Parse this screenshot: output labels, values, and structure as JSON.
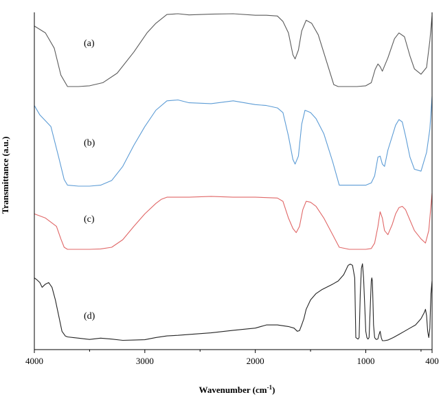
{
  "chart_data": {
    "type": "line",
    "title": "",
    "xlabel": "Wavenumber (cm",
    "xlabel_sup": "-1",
    "xlabel_tail": ")",
    "ylabel": "Transmittance (a.u.)",
    "x_reversed": true,
    "xlim": [
      4000,
      400
    ],
    "ylim": [
      0,
      1
    ],
    "y_ticks": false,
    "grid": false,
    "x_ticks": [
      4000,
      3000,
      2000,
      1000,
      400
    ],
    "x_tick_labels": [
      "4000",
      "3000",
      "2000",
      "1000",
      "400"
    ],
    "x_minor_ticks": [
      3500,
      2500,
      1500,
      500
    ],
    "series": [
      {
        "name": "(a)",
        "color": "#5a5a5a",
        "x": [
          4000,
          3900,
          3820,
          3760,
          3700,
          3600,
          3500,
          3380,
          3250,
          3100,
          2980,
          2900,
          2800,
          2700,
          2600,
          2400,
          2200,
          2000,
          1900,
          1800,
          1750,
          1700,
          1660,
          1640,
          1610,
          1580,
          1540,
          1490,
          1430,
          1360,
          1290,
          1250,
          1200,
          1150,
          1080,
          1000,
          950,
          915,
          890,
          870,
          850,
          800,
          740,
          700,
          650,
          600,
          560,
          500,
          450,
          420,
          400
        ],
        "y": [
          0.968,
          0.95,
          0.91,
          0.84,
          0.81,
          0.81,
          0.812,
          0.82,
          0.845,
          0.9,
          0.95,
          0.975,
          0.998,
          1.0,
          0.997,
          0.999,
          1.0,
          0.996,
          0.996,
          0.994,
          0.98,
          0.95,
          0.893,
          0.882,
          0.905,
          0.955,
          0.983,
          0.975,
          0.945,
          0.88,
          0.815,
          0.81,
          0.81,
          0.81,
          0.81,
          0.812,
          0.82,
          0.855,
          0.869,
          0.862,
          0.85,
          0.885,
          0.935,
          0.95,
          0.94,
          0.89,
          0.856,
          0.842,
          0.86,
          0.93,
          0.995
        ]
      },
      {
        "name": "(b)",
        "color": "#5b9bd5",
        "x": [
          4000,
          3950,
          3850,
          3780,
          3730,
          3700,
          3600,
          3500,
          3400,
          3300,
          3200,
          3100,
          3000,
          2900,
          2800,
          2700,
          2600,
          2400,
          2200,
          2000,
          1900,
          1800,
          1750,
          1700,
          1660,
          1640,
          1610,
          1580,
          1550,
          1500,
          1450,
          1380,
          1300,
          1240,
          1150,
          1080,
          1000,
          950,
          920,
          890,
          870,
          850,
          830,
          800,
          760,
          730,
          700,
          670,
          640,
          600,
          560,
          500,
          450,
          420,
          400
        ],
        "y": [
          0.75,
          0.73,
          0.705,
          0.64,
          0.592,
          0.58,
          0.578,
          0.578,
          0.58,
          0.59,
          0.62,
          0.665,
          0.705,
          0.74,
          0.76,
          0.762,
          0.756,
          0.754,
          0.76,
          0.752,
          0.75,
          0.745,
          0.735,
          0.685,
          0.635,
          0.625,
          0.642,
          0.71,
          0.74,
          0.735,
          0.722,
          0.69,
          0.63,
          0.58,
          0.58,
          0.58,
          0.58,
          0.585,
          0.6,
          0.64,
          0.642,
          0.625,
          0.62,
          0.655,
          0.685,
          0.708,
          0.72,
          0.715,
          0.685,
          0.64,
          0.614,
          0.61,
          0.65,
          0.7,
          0.77
        ]
      },
      {
        "name": "(c)",
        "color": "#e06666",
        "x": [
          4000,
          3900,
          3800,
          3760,
          3730,
          3700,
          3600,
          3500,
          3400,
          3300,
          3200,
          3100,
          3000,
          2900,
          2850,
          2800,
          2600,
          2400,
          2200,
          2000,
          1900,
          1800,
          1750,
          1700,
          1660,
          1630,
          1600,
          1570,
          1540,
          1500,
          1450,
          1380,
          1300,
          1240,
          1150,
          1080,
          1000,
          950,
          920,
          890,
          870,
          850,
          830,
          800,
          760,
          730,
          700,
          670,
          640,
          600,
          560,
          500,
          460,
          430,
          400
        ],
        "y": [
          0.44,
          0.43,
          0.41,
          0.38,
          0.36,
          0.355,
          0.355,
          0.355,
          0.356,
          0.36,
          0.378,
          0.41,
          0.44,
          0.465,
          0.475,
          0.48,
          0.48,
          0.482,
          0.48,
          0.48,
          0.479,
          0.478,
          0.47,
          0.43,
          0.405,
          0.395,
          0.41,
          0.45,
          0.47,
          0.468,
          0.458,
          0.43,
          0.39,
          0.36,
          0.355,
          0.355,
          0.355,
          0.357,
          0.37,
          0.41,
          0.445,
          0.43,
          0.4,
          0.39,
          0.415,
          0.44,
          0.455,
          0.458,
          0.45,
          0.425,
          0.4,
          0.38,
          0.37,
          0.4,
          0.49
        ]
      },
      {
        "name": "(d)",
        "color": "#222222",
        "x": [
          4000,
          3980,
          3950,
          3930,
          3900,
          3870,
          3840,
          3810,
          3780,
          3750,
          3720,
          3700,
          3650,
          3600,
          3500,
          3400,
          3300,
          3200,
          3100,
          3000,
          2900,
          2800,
          2700,
          2600,
          2400,
          2200,
          2000,
          1900,
          1800,
          1700,
          1650,
          1620,
          1600,
          1580,
          1560,
          1540,
          1500,
          1450,
          1400,
          1300,
          1250,
          1200,
          1180,
          1160,
          1140,
          1120,
          1100,
          1090,
          1070,
          1060,
          1050,
          1040,
          1030,
          1020,
          1000,
          990,
          980,
          970,
          960,
          950,
          945,
          940,
          935,
          930,
          920,
          910,
          900,
          890,
          880,
          870,
          860,
          850,
          830,
          800,
          750,
          700,
          650,
          600,
          550,
          500,
          470,
          460,
          450,
          440,
          430,
          420,
          415,
          410,
          400
        ],
        "y": [
          0.2,
          0.195,
          0.185,
          0.17,
          0.18,
          0.185,
          0.17,
          0.13,
          0.08,
          0.03,
          0.015,
          0.012,
          0.01,
          0.008,
          0.004,
          0.008,
          0.005,
          0.001,
          0.002,
          0.003,
          0.01,
          0.015,
          0.017,
          0.02,
          0.025,
          0.033,
          0.04,
          0.05,
          0.05,
          0.045,
          0.04,
          0.03,
          0.032,
          0.05,
          0.07,
          0.1,
          0.13,
          0.15,
          0.162,
          0.18,
          0.19,
          0.21,
          0.225,
          0.24,
          0.244,
          0.24,
          0.2,
          0.01,
          0.005,
          0.01,
          0.15,
          0.23,
          0.245,
          0.2,
          0.03,
          0.01,
          0.005,
          0.01,
          0.1,
          0.19,
          0.2,
          0.19,
          0.12,
          0.05,
          0.01,
          0.005,
          0.004,
          0.006,
          0.02,
          0.03,
          0.01,
          0.0,
          0.0,
          0.002,
          0.01,
          0.02,
          0.03,
          0.04,
          0.05,
          0.07,
          0.09,
          0.1,
          0.08,
          0.03,
          0.01,
          0.04,
          0.1,
          0.15,
          0.19
        ]
      }
    ]
  }
}
